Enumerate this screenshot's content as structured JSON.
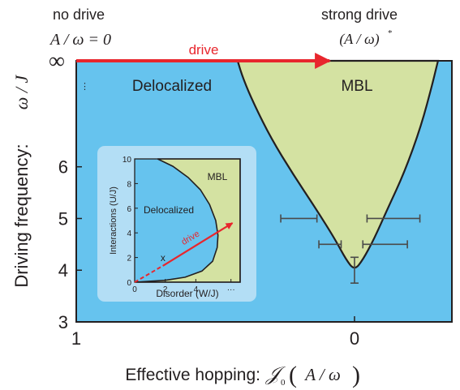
{
  "colors": {
    "delocalized_bg": "#66c3ee",
    "mbl_fill": "#d4e2a2",
    "inset_frame": "#b3def5",
    "drive_arrow": "#e8262d",
    "ink": "#231f20",
    "errorbar": "#4a4a4a"
  },
  "annotations": {
    "no_drive": "no drive",
    "no_drive_formula": "A / ω = 0",
    "strong_drive": "strong drive",
    "strong_drive_formula": "(A / ω)",
    "strong_drive_superscript": "*",
    "drive_label": "drive",
    "infinity": "∞",
    "ellipsis": "⋮"
  },
  "chart_data": [
    {
      "type": "area",
      "regions": [
        {
          "label": "Delocalized",
          "color": "#66c3ee"
        },
        {
          "label": "MBL",
          "color": "#d4e2a2"
        }
      ],
      "ylabel_text": "Driving frequency:",
      "ylabel_math": "ω / J",
      "xlabel_text": "Effective hopping:",
      "xlabel_math_j": "𝒥",
      "xlabel_math_sub": "0",
      "xlabel_math_arg": "A / ω",
      "x_ticks": [
        "1",
        "0"
      ],
      "y_ticks": [
        "3",
        "4",
        "5",
        "6"
      ],
      "y_top_tick": "∞",
      "xlim": [
        1,
        -0.35
      ],
      "ylim": [
        3,
        8.05
      ],
      "boundary": {
        "x": [
          0.42,
          0.4,
          0.36,
          0.3,
          0.22,
          0.14,
          0.07,
          0.03,
          0.0,
          -0.03,
          -0.07,
          -0.12,
          -0.18,
          -0.24,
          -0.28,
          -0.3
        ],
        "y": [
          8.05,
          7.7,
          7.2,
          6.55,
          5.85,
          5.2,
          4.6,
          4.2,
          4.0,
          4.2,
          4.6,
          5.2,
          5.9,
          6.8,
          7.6,
          8.05
        ]
      },
      "error_bars": [
        {
          "x": 0.2,
          "y": 5.0,
          "xerr": 0.065
        },
        {
          "x": 0.088,
          "y": 4.5,
          "xerr": 0.04
        },
        {
          "x": -0.14,
          "y": 5.0,
          "xerr": 0.095
        },
        {
          "x": -0.11,
          "y": 4.5,
          "xerr": 0.08
        },
        {
          "x": 0.0,
          "y": 4.0,
          "yerr": 0.25
        }
      ],
      "drive_arrow": {
        "x_start": 1.0,
        "x_end": 0.09,
        "y": 8.05
      }
    },
    {
      "type": "area",
      "regions": [
        {
          "label": "Delocalized",
          "color": "#66c3ee"
        },
        {
          "label": "MBL",
          "color": "#d4e2a2"
        }
      ],
      "xlabel": "Disorder (W/J)",
      "ylabel": "Interactions (U/J)",
      "x_ticks": [
        "0",
        "2",
        "4",
        "···"
      ],
      "y_ticks": [
        "0",
        "2",
        "4",
        "6",
        "8",
        "10"
      ],
      "xlim": [
        0,
        6.9
      ],
      "ylim": [
        0,
        10
      ],
      "boundary": {
        "x": [
          1.5,
          2.5,
          3.5,
          4.3,
          4.9,
          5.3,
          5.45,
          5.4,
          5.1,
          4.4,
          3.3,
          2.0,
          0.0
        ],
        "y": [
          10.0,
          9.4,
          8.5,
          7.5,
          6.3,
          5.0,
          3.8,
          2.8,
          1.7,
          0.9,
          0.4,
          0.15,
          0.0
        ]
      },
      "point_label": "x",
      "point": {
        "x": 1.85,
        "y": 1.85
      },
      "drive_arrow": {
        "x_start": 0.0,
        "y_start": 0.0,
        "x_end": 6.4,
        "y_end": 4.8
      },
      "drive_label": "drive"
    }
  ]
}
